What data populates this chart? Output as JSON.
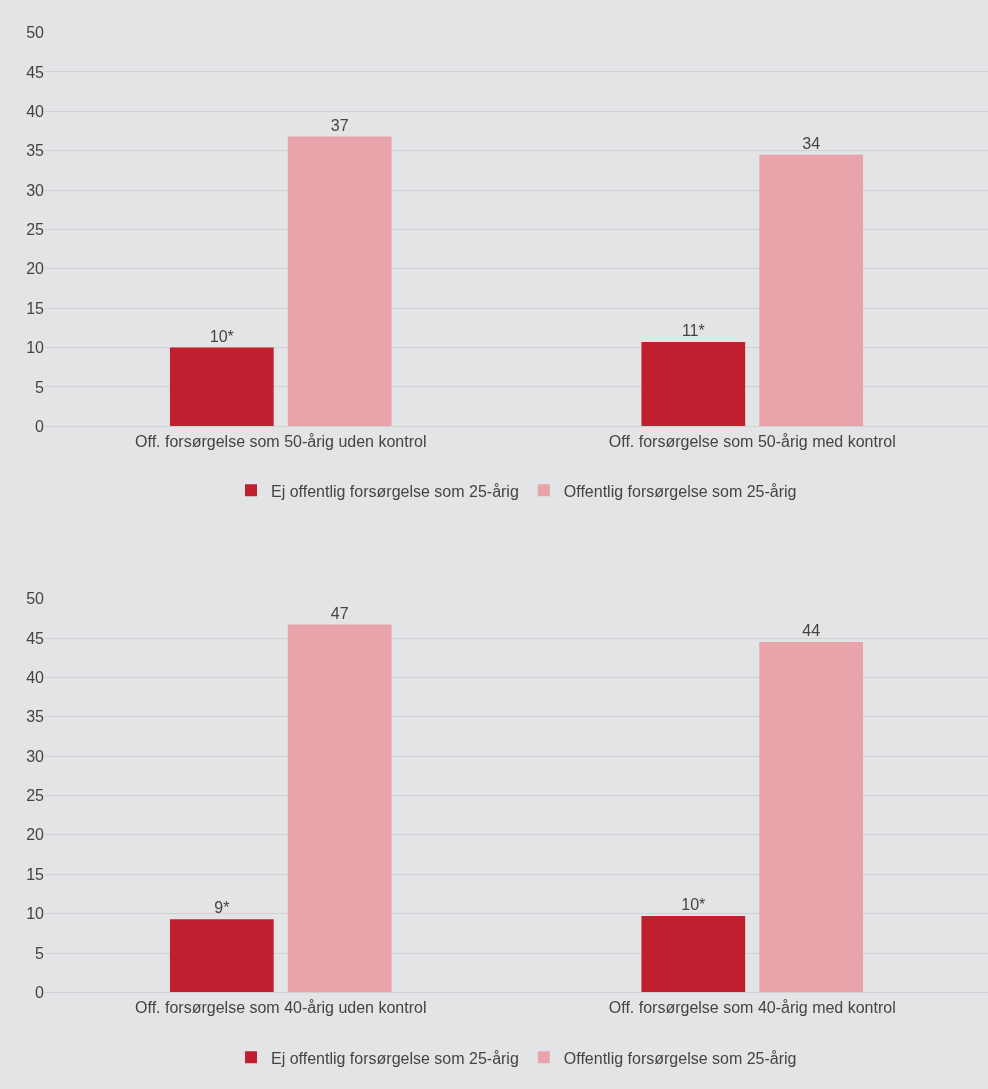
{
  "chart_data": [
    {
      "type": "bar",
      "categories": [
        "Off. forsørgelse som 50-årig uden kontrol",
        "Off. forsørgelse som 50-årig med kontrol"
      ],
      "series": [
        {
          "name": "Ej offentlig forsørgelse som 25-årig",
          "color": "#c01f2f",
          "values": [
            10,
            10.7
          ],
          "value_labels": [
            "10*",
            "11*"
          ]
        },
        {
          "name": "Offentlig forsørgelse som 25-årig",
          "color": "#e8a4aa",
          "values": [
            36.8,
            34.5
          ],
          "value_labels": [
            "37",
            "34"
          ]
        }
      ],
      "ylim": [
        0,
        50
      ],
      "yticks": [
        0,
        5,
        10,
        15,
        20,
        25,
        30,
        35,
        40,
        45,
        50
      ],
      "grid": "y",
      "legend": "bottom"
    },
    {
      "type": "bar",
      "categories": [
        "Off. forsørgelse som 40-årig uden kontrol",
        "Off. forsørgelse som 40-årig med kontrol"
      ],
      "series": [
        {
          "name": "Ej offentlig forsørgelse som 25-årig",
          "color": "#c01f2f",
          "values": [
            9.3,
            9.7
          ],
          "value_labels": [
            "9*",
            "10*"
          ]
        },
        {
          "name": "Offentlig forsørgelse som 25-årig",
          "color": "#e8a4aa",
          "values": [
            46.7,
            44.5
          ],
          "value_labels": [
            "47",
            "44"
          ]
        }
      ],
      "ylim": [
        0,
        50
      ],
      "yticks": [
        0,
        5,
        10,
        15,
        20,
        25,
        30,
        35,
        40,
        45,
        50
      ],
      "grid": "y",
      "legend": "bottom"
    }
  ]
}
